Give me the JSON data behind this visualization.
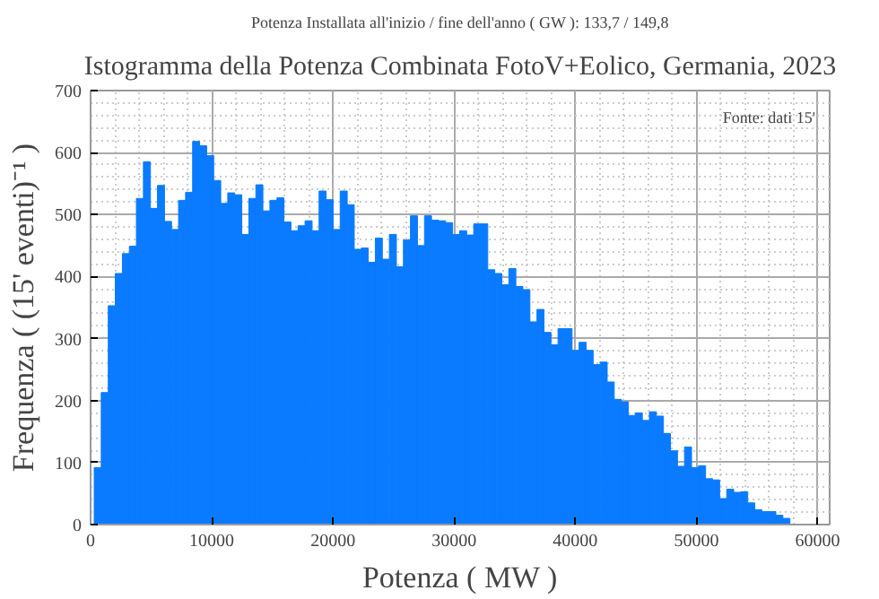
{
  "chart_data": {
    "type": "histogram",
    "title": "Istogramma della Potenza Combinata FotoV+Eolico, Germania, 2023",
    "subtitle": "Potenza Installata all'inizio / fine dell'anno ( GW ): 133,7 / 149,8",
    "xlabel": "Potenza ( MW )",
    "ylabel": "Frequenza ( (15' eventi)⁻¹ )",
    "annotations": [
      "Fonte: dati 15'"
    ],
    "color": "#0a7bff",
    "bins": [
      300,
      880,
      1460,
      2040,
      2620,
      3200,
      3780,
      4360,
      4940,
      5520,
      6100,
      6680,
      7260,
      7840,
      8420,
      9000,
      9580,
      10160,
      10740,
      11320,
      11900,
      12480,
      13060,
      13640,
      14220,
      14800,
      15380,
      15960,
      16540,
      17120,
      17700,
      18280,
      18860,
      19440,
      20020,
      20600,
      21180,
      21760,
      22340,
      22920,
      23500,
      24080,
      24660,
      25240,
      25820,
      26400,
      26980,
      27560,
      28140,
      28720,
      29300,
      29880,
      30460,
      31040,
      31620,
      32200,
      32780,
      33360,
      33940,
      34520,
      35100,
      35680,
      36260,
      36840,
      37420,
      38000,
      38580,
      39160,
      39740,
      40320,
      40900,
      41480,
      42060,
      42640,
      43220,
      43800,
      44380,
      44960,
      45540,
      46120,
      46700,
      47280,
      47860,
      48440,
      49020,
      49600,
      50180,
      50760,
      51340,
      51920,
      52500,
      53080,
      53660,
      54240,
      54820,
      55400,
      55980,
      56560,
      57140,
      57720
    ],
    "values": [
      92,
      213,
      353,
      405,
      437,
      449,
      526,
      585,
      510,
      547,
      489,
      476,
      523,
      536,
      618,
      611,
      595,
      555,
      518,
      535,
      532,
      468,
      526,
      548,
      506,
      523,
      527,
      488,
      474,
      482,
      490,
      474,
      538,
      524,
      476,
      538,
      516,
      444,
      446,
      423,
      462,
      428,
      468,
      416,
      459,
      498,
      450,
      498,
      491,
      490,
      487,
      468,
      474,
      467,
      485,
      485,
      411,
      405,
      387,
      413,
      384,
      379,
      327,
      347,
      310,
      290,
      316,
      316,
      281,
      294,
      281,
      258,
      262,
      230,
      202,
      198,
      176,
      180,
      168,
      182,
      175,
      147,
      119,
      94,
      125,
      92,
      95,
      74,
      72,
      42,
      57,
      52,
      53,
      35,
      24,
      21,
      21,
      15,
      10
    ],
    "xlim": [
      0,
      61000
    ],
    "ylim": [
      0,
      700
    ],
    "xticks": [
      0,
      10000,
      20000,
      30000,
      40000,
      50000,
      60000
    ],
    "yticks": [
      0,
      100,
      200,
      300,
      400,
      500,
      600,
      700
    ],
    "grid": true
  }
}
